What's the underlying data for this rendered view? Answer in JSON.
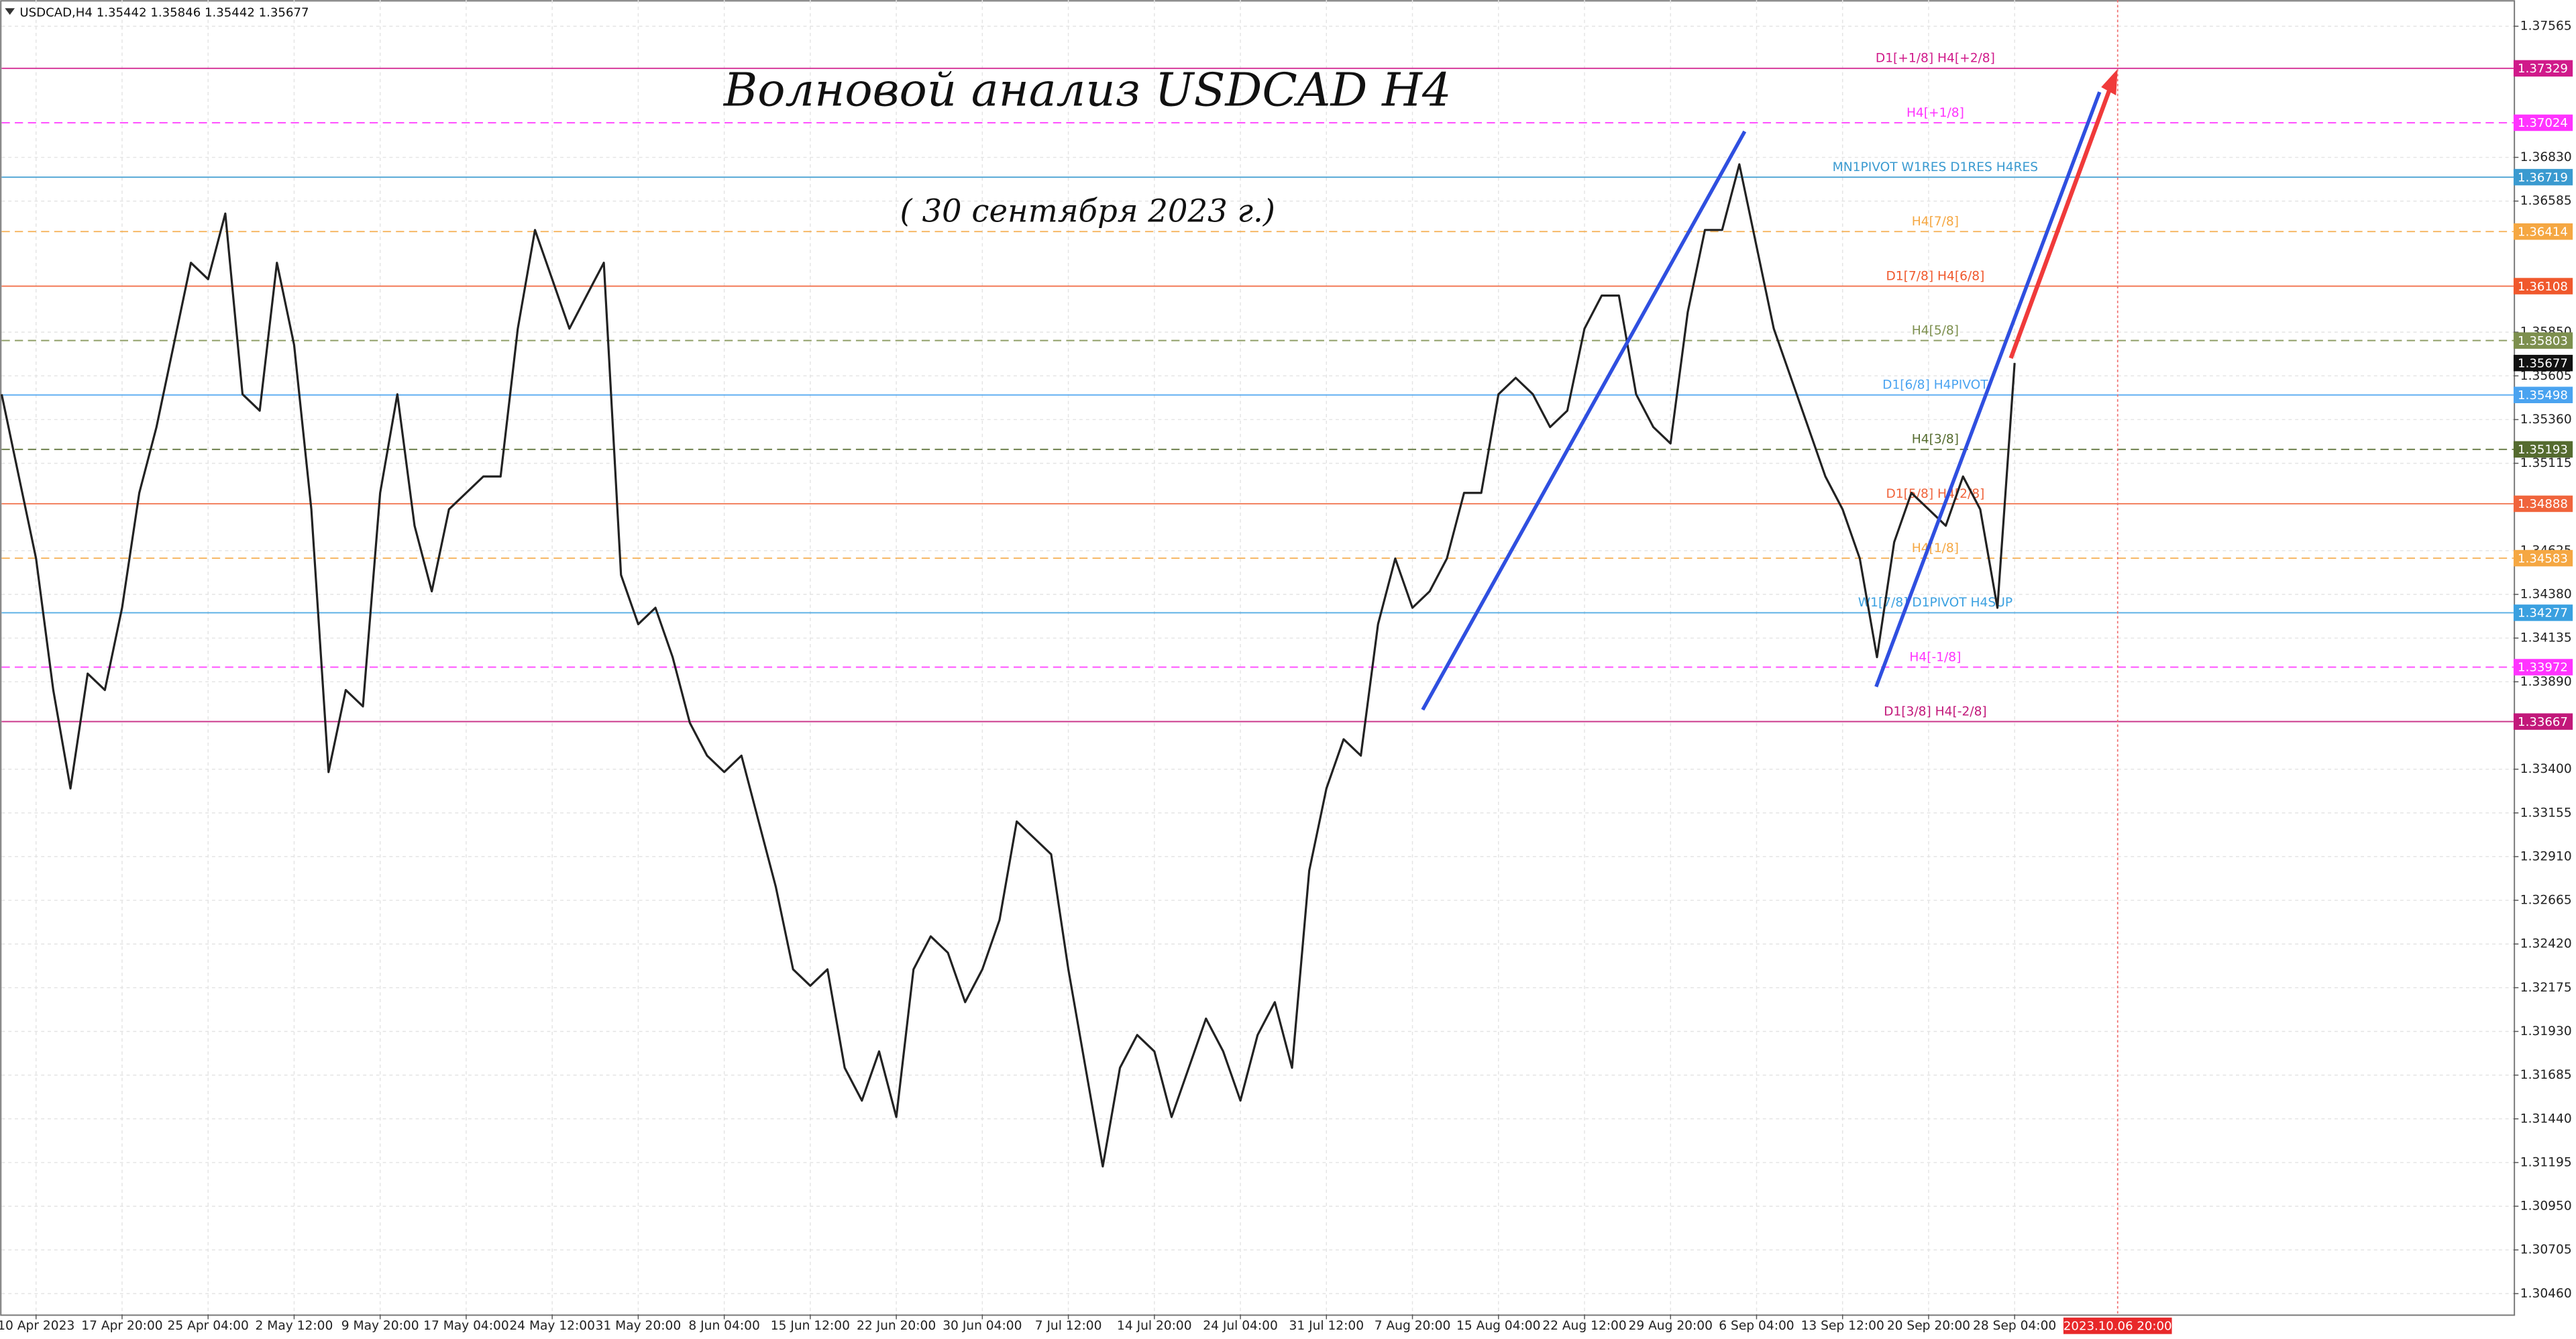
{
  "chart_data": {
    "type": "line",
    "title": "Волновой анализ USDCAD H4",
    "subtitle": "( 30 сентября 2023 г.)",
    "symbol_info": "USDCAD,H4  1.35442 1.35846 1.35442 1.35677",
    "color": "#222222",
    "grid": true,
    "ylim": [
      1.30344,
      1.37712
    ],
    "yticks": [
      1.37565,
      {
        "value": 1.3683,
        "label": "1.36830"
      },
      1.36585,
      {
        "value": 1.3585,
        "label": "1.35850"
      },
      1.35605,
      {
        "value": 1.3536,
        "label": "1.35360"
      },
      1.35115,
      1.34625,
      {
        "value": 1.3438,
        "label": "1.34380"
      },
      1.34135,
      {
        "value": 1.3389,
        "label": "1.33890"
      },
      {
        "value": 1.334,
        "label": "1.33400"
      },
      1.33155,
      {
        "value": 1.3291,
        "label": "1.32910"
      },
      1.32665,
      {
        "value": 1.3242,
        "label": "1.32420"
      },
      1.32175,
      {
        "value": 1.3193,
        "label": "1.31930"
      },
      1.31685,
      {
        "value": 1.3144,
        "label": "1.31440"
      },
      1.31195,
      {
        "value": 1.3095,
        "label": "1.30950"
      },
      1.30705,
      {
        "value": 1.3046,
        "label": "1.30460"
      }
    ],
    "categories": [
      null,
      null,
      "10 Apr 2023",
      null,
      null,
      null,
      null,
      "17 Apr 20:00",
      null,
      null,
      null,
      null,
      "25 Apr 04:00",
      null,
      null,
      null,
      null,
      "2 May 12:00",
      null,
      null,
      null,
      null,
      "9 May 20:00",
      null,
      null,
      null,
      null,
      "17 May 04:00",
      null,
      null,
      null,
      null,
      "24 May 12:00",
      null,
      null,
      null,
      null,
      "31 May 20:00",
      null,
      null,
      null,
      null,
      "8 Jun 04:00",
      null,
      null,
      null,
      null,
      "15 Jun 12:00",
      null,
      null,
      null,
      null,
      "22 Jun 20:00",
      null,
      null,
      null,
      null,
      "30 Jun 04:00",
      null,
      null,
      null,
      null,
      "7 Jul 12:00",
      null,
      null,
      null,
      null,
      "14 Jul 20:00",
      null,
      null,
      null,
      null,
      "24 Jul 04:00",
      null,
      null,
      null,
      null,
      "31 Jul 12:00",
      null,
      null,
      null,
      null,
      "7 Aug 20:00",
      null,
      null,
      null,
      null,
      "15 Aug 04:00",
      null,
      null,
      null,
      null,
      "22 Aug 12:00",
      null,
      null,
      null,
      null,
      "29 Aug 20:00",
      null,
      null,
      null,
      null,
      "6 Sep 04:00",
      null,
      null,
      null,
      null,
      "13 Sep 12:00",
      null,
      null,
      null,
      null,
      "20 Sep 20:00",
      null,
      null,
      null,
      null,
      "28 Sep 04:00",
      null,
      null,
      null,
      null,
      null,
      null,
      null,
      null,
      null,
      null,
      null,
      null,
      null,
      null,
      null,
      null,
      null,
      null,
      null,
      null,
      null,
      null,
      null,
      null,
      null,
      null,
      null,
      null,
      null
    ],
    "values": [
      1.35502,
      1.35041,
      1.34581,
      1.33844,
      1.33292,
      1.33936,
      1.33844,
      1.34305,
      1.34949,
      1.35318,
      1.35778,
      1.36239,
      1.36147,
      1.36515,
      1.35502,
      1.3541,
      1.36239,
      1.35778,
      1.34857,
      1.33384,
      1.33844,
      1.33752,
      1.34949,
      1.35502,
      1.34765,
      1.34397,
      1.34857,
      1.34949,
      1.35041,
      1.35041,
      1.3587,
      1.36423,
      1.36147,
      1.3587,
      1.36055,
      1.36239,
      1.34489,
      1.34213,
      1.34305,
      1.34028,
      1.3366,
      1.33476,
      1.33384,
      1.33476,
      1.33107,
      1.32739,
      1.32278,
      1.32186,
      1.32278,
      1.31726,
      1.31542,
      1.31818,
      1.3145,
      1.32278,
      1.32463,
      1.32371,
      1.32094,
      1.32278,
      1.32555,
      1.33107,
      1.33015,
      1.32923,
      1.32278,
      1.31726,
      1.31173,
      1.31726,
      1.3191,
      1.31818,
      1.3145,
      1.31726,
      1.32002,
      1.31818,
      1.31542,
      1.3191,
      1.32094,
      1.31726,
      1.32831,
      1.33292,
      1.33568,
      1.33476,
      1.34213,
      1.34581,
      1.34305,
      1.34397,
      1.34581,
      1.34949,
      1.34949,
      1.35502,
      1.35594,
      1.35502,
      1.35318,
      1.3541,
      1.3587,
      1.36055,
      1.36055,
      1.35502,
      1.35318,
      1.35226,
      1.35962,
      1.36423,
      1.36423,
      1.36791,
      1.36331,
      1.3587,
      1.35594,
      1.35318,
      1.35041,
      1.34857,
      1.34581,
      1.34028,
      1.34673,
      1.34949,
      1.34857,
      1.34765,
      1.35041,
      1.34857,
      1.34305,
      1.35677,
      null,
      null,
      null,
      null,
      null,
      null,
      null,
      null,
      null,
      null,
      null,
      null,
      null,
      null,
      null,
      null,
      null,
      null,
      null,
      null,
      null,
      null,
      null,
      null,
      null,
      null,
      null,
      null,
      null
    ],
    "levels": [
      {
        "label": "D1[+1/8] H4[+2/8]",
        "price": 1.37329,
        "color": "#d01a8a",
        "dashed": false
      },
      {
        "label": "H4[+1/8]",
        "price": 1.37024,
        "color": "#ff33ff",
        "dashed": true
      },
      {
        "label": "MN1PIVOT W1RES D1RES H4RES",
        "price": 1.36719,
        "color": "#3a9ad0",
        "dashed": false
      },
      {
        "label": "H4[7/8]",
        "price": 1.36414,
        "color": "#f5a742",
        "dashed": true
      },
      {
        "label": "D1[7/8] H4[6/8]",
        "price": 1.36108,
        "color": "#f0582c",
        "dashed": false
      },
      {
        "label": "H4[5/8]",
        "price": 1.35803,
        "color": "#7d8f4e",
        "dashed": true
      },
      {
        "label": "D1[6/8] H4PIVOT",
        "price": 1.35498,
        "color": "#4aa3f0",
        "dashed": false
      },
      {
        "label": "H4[3/8]",
        "price": 1.35193,
        "color": "#556b2f",
        "dashed": true
      },
      {
        "label": "D1[5/8] H4[2/8]",
        "price": 1.34888,
        "color": "#f0643c",
        "dashed": false
      },
      {
        "label": "H4[1/8]",
        "price": 1.34583,
        "color": "#f5a742",
        "dashed": true
      },
      {
        "label": "W1[7/8] D1PIVOT H4SUP",
        "price": 1.34277,
        "color": "#3aa0e0",
        "dashed": false
      },
      {
        "label": "H4[-1/8]",
        "price": 1.33972,
        "color": "#ff33ff",
        "dashed": true
      },
      {
        "label": "D1[3/8] H4[-2/8]",
        "price": 1.33667,
        "color": "#c2187a",
        "dashed": false
      }
    ],
    "current_price": 1.35677,
    "crosshair_label": "2023.10.06 20:00"
  }
}
